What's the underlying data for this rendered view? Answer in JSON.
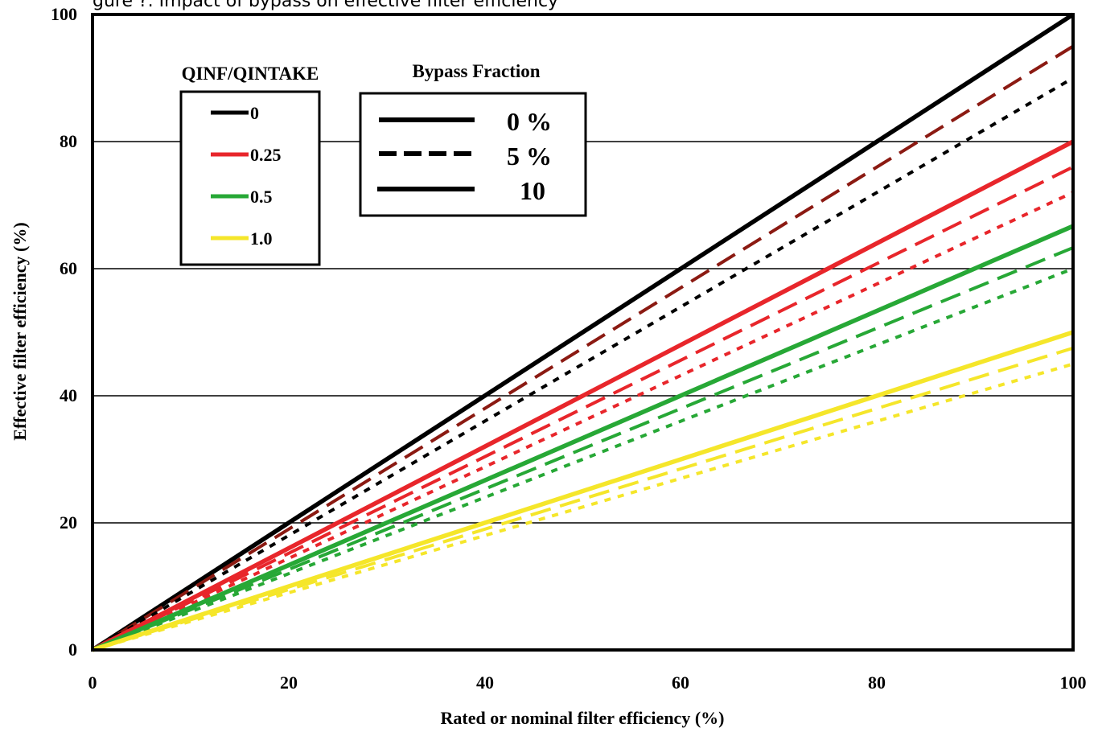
{
  "caption_fragment": "gure ?. Impact of bypass on effective filter efficiency",
  "chart_data": {
    "type": "line",
    "title": "",
    "xlabel": "Rated or nominal filter efficiency (%)",
    "ylabel": "Effective filter efficiency (%)",
    "xlim": [
      0,
      100
    ],
    "ylim": [
      0,
      100
    ],
    "xticks": [
      "0",
      "20",
      "40",
      "60",
      "80",
      "100"
    ],
    "yticks": [
      "0",
      "20",
      "40",
      "60",
      "80",
      "100"
    ],
    "grid": "horizontal",
    "legends": [
      {
        "title": "QINF/QINTAKE",
        "placement": "upper-left",
        "entries": [
          {
            "label": "0",
            "color": "#000000"
          },
          {
            "label": "0.25",
            "color": "#e8262b"
          },
          {
            "label": "0.5",
            "color": "#27a836"
          },
          {
            "label": "1.0",
            "color": "#f5e62a"
          }
        ]
      },
      {
        "title": "Bypass Fraction",
        "placement": "upper-center",
        "entries": [
          {
            "label": "0 %",
            "style": "solid"
          },
          {
            "label": "5 %",
            "style": "dashed"
          },
          {
            "label": "10",
            "style": "solid"
          }
        ]
      }
    ],
    "series": [
      {
        "qinf_qintake": "0",
        "bypass": "0 %",
        "color": "#000000",
        "style": "solid",
        "x": [
          0,
          100
        ],
        "y": [
          0,
          100
        ]
      },
      {
        "qinf_qintake": "0",
        "bypass": "5 %",
        "color": "#8b1a12",
        "style": "long-dash",
        "x": [
          0,
          100
        ],
        "y": [
          0,
          95
        ]
      },
      {
        "qinf_qintake": "0",
        "bypass": "10",
        "color": "#000000",
        "style": "short-dash",
        "x": [
          0,
          100
        ],
        "y": [
          0,
          90
        ]
      },
      {
        "qinf_qintake": "0.25",
        "bypass": "0 %",
        "color": "#e8262b",
        "style": "solid",
        "x": [
          0,
          100
        ],
        "y": [
          0,
          80
        ]
      },
      {
        "qinf_qintake": "0.25",
        "bypass": "5 %",
        "color": "#e8262b",
        "style": "long-dash",
        "x": [
          0,
          100
        ],
        "y": [
          0,
          76
        ]
      },
      {
        "qinf_qintake": "0.25",
        "bypass": "10",
        "color": "#e8262b",
        "style": "short-dash",
        "x": [
          0,
          100
        ],
        "y": [
          0,
          72
        ]
      },
      {
        "qinf_qintake": "0.5",
        "bypass": "0 %",
        "color": "#27a836",
        "style": "solid",
        "x": [
          0,
          100
        ],
        "y": [
          0,
          66.7
        ]
      },
      {
        "qinf_qintake": "0.5",
        "bypass": "5 %",
        "color": "#27a836",
        "style": "long-dash",
        "x": [
          0,
          100
        ],
        "y": [
          0,
          63.3
        ]
      },
      {
        "qinf_qintake": "0.5",
        "bypass": "10",
        "color": "#27a836",
        "style": "short-dash",
        "x": [
          0,
          100
        ],
        "y": [
          0,
          60
        ]
      },
      {
        "qinf_qintake": "1.0",
        "bypass": "0 %",
        "color": "#f5e62a",
        "style": "solid",
        "x": [
          0,
          100
        ],
        "y": [
          0,
          50
        ]
      },
      {
        "qinf_qintake": "1.0",
        "bypass": "5 %",
        "color": "#f5e62a",
        "style": "long-dash",
        "x": [
          0,
          100
        ],
        "y": [
          0,
          47.5
        ]
      },
      {
        "qinf_qintake": "1.0",
        "bypass": "10",
        "color": "#f5e62a",
        "style": "short-dash",
        "x": [
          0,
          100
        ],
        "y": [
          0,
          45
        ]
      }
    ]
  }
}
